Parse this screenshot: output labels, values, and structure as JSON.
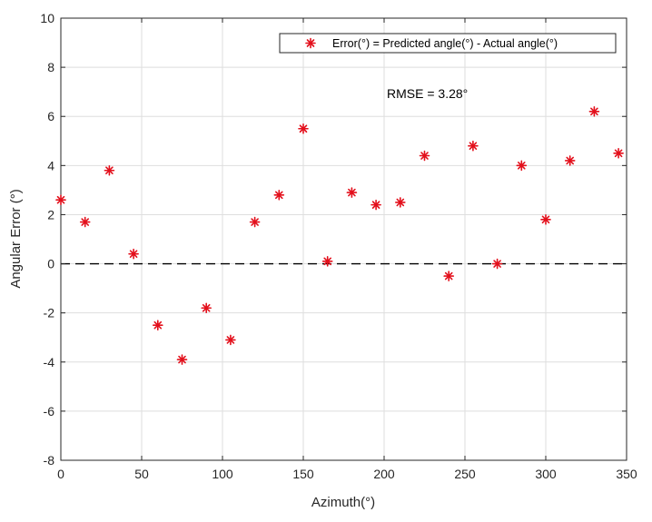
{
  "chart_data": {
    "type": "scatter",
    "title": "",
    "xlabel": "Azimuth(°)",
    "ylabel": "Angular Error (°)",
    "xlim": [
      0,
      350
    ],
    "ylim": [
      -8,
      10
    ],
    "xticks": [
      0,
      50,
      100,
      150,
      200,
      250,
      300,
      350
    ],
    "yticks": [
      -8,
      -6,
      -4,
      -2,
      0,
      2,
      4,
      6,
      8,
      10
    ],
    "grid": true,
    "legend_position": "upper right",
    "series": [
      {
        "name": "Error(°) = Predicted angle(°) - Actual angle(°)",
        "marker": "*",
        "color": "#e3101c",
        "x": [
          0,
          15,
          30,
          45,
          60,
          75,
          90,
          105,
          120,
          135,
          150,
          165,
          180,
          195,
          210,
          225,
          240,
          255,
          270,
          285,
          300,
          315,
          330,
          345
        ],
        "y": [
          2.6,
          1.7,
          3.8,
          0.4,
          -2.5,
          -3.9,
          -1.8,
          -3.1,
          1.7,
          2.8,
          5.5,
          0.1,
          2.9,
          2.4,
          2.5,
          4.4,
          -0.5,
          4.8,
          0.0,
          4.0,
          1.8,
          4.2,
          6.2,
          4.5
        ]
      }
    ],
    "reference_lines": [
      {
        "type": "horizontal",
        "y": 0,
        "style": "dashed",
        "color": "#000000"
      }
    ],
    "annotations": [
      {
        "text": "RMSE = 3.28°",
        "x": 200,
        "y": 7.0
      }
    ]
  },
  "legend": {
    "label": "Error(°) = Predicted angle(°) - Actual angle(°)",
    "marker": "*"
  },
  "annotation": {
    "rmse_text": "RMSE = 3.28°"
  },
  "axes": {
    "xlabel": "Azimuth(°)",
    "ylabel": "Angular Error (°)"
  },
  "colors": {
    "marker": "#e3101c",
    "grid": "#dedede",
    "axis": "#262626"
  }
}
